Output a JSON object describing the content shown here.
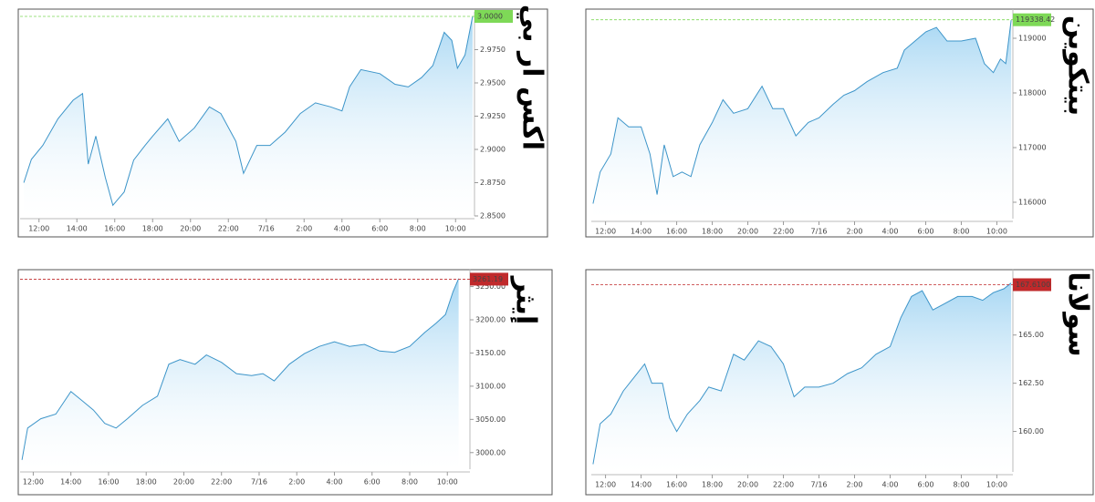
{
  "chart_data": [
    {
      "type": "line",
      "title": "اكس ار بي",
      "color": "#3d95c9",
      "area": true,
      "x": [
        11.2,
        11.6,
        12.2,
        13,
        13.8,
        14.3,
        14.6,
        15,
        15.5,
        15.9,
        16.5,
        17,
        17.6,
        18,
        18.8,
        19.4,
        20.2,
        21,
        21.6,
        22.4,
        22.8,
        23.5,
        24.2,
        25,
        25.8,
        26.6,
        27.4,
        28,
        28.4,
        29,
        30,
        30.8,
        31.5,
        32.2,
        32.8,
        33.4,
        33.8,
        34.1,
        34.5,
        34.9
      ],
      "values": [
        2.875,
        2.8925,
        2.903,
        2.923,
        2.937,
        2.942,
        2.889,
        2.91,
        2.879,
        2.858,
        2.868,
        2.892,
        2.903,
        2.91,
        2.923,
        2.906,
        2.916,
        2.932,
        2.927,
        2.906,
        2.882,
        2.903,
        2.903,
        2.913,
        2.927,
        2.935,
        2.932,
        2.929,
        2.947,
        2.96,
        2.957,
        2.949,
        2.947,
        2.954,
        2.963,
        2.988,
        2.982,
        2.961,
        2.971,
        3.0
      ],
      "xlim": [
        11,
        35
      ],
      "xticks": [
        {
          "value": 12,
          "label": "12:00"
        },
        {
          "value": 14,
          "label": "14:00"
        },
        {
          "value": 16,
          "label": "16:00"
        },
        {
          "value": 18,
          "label": "18:00"
        },
        {
          "value": 20,
          "label": "20:00"
        },
        {
          "value": 22,
          "label": "22:00"
        },
        {
          "value": 24,
          "label": "7/16"
        },
        {
          "value": 26,
          "label": "2:00"
        },
        {
          "value": 28,
          "label": "4:00"
        },
        {
          "value": 30,
          "label": "6:00"
        },
        {
          "value": 32,
          "label": "8:00"
        },
        {
          "value": 34,
          "label": "10:00"
        }
      ],
      "ylim": [
        2.85,
        3.0
      ],
      "yticks": [
        {
          "value": 2.85,
          "label": "2.8500"
        },
        {
          "value": 2.875,
          "label": "2.8750"
        },
        {
          "value": 2.9,
          "label": "2.9000"
        },
        {
          "value": 2.925,
          "label": "2.9250"
        },
        {
          "value": 2.95,
          "label": "2.9500"
        },
        {
          "value": 2.975,
          "label": "2.9750"
        },
        {
          "value": 3.0,
          "label": "3.0000"
        }
      ],
      "price_tag": {
        "value": 3.0,
        "label": "3.0000",
        "color": "#7ed957"
      }
    },
    {
      "type": "line",
      "title": "بيتكوين",
      "color": "#3d95c9",
      "area": true,
      "x": [
        11.3,
        11.7,
        12.3,
        12.7,
        13.3,
        14,
        14.5,
        14.9,
        15.3,
        15.8,
        16.3,
        16.8,
        17.3,
        18,
        18.6,
        19.2,
        20,
        20.8,
        21.4,
        22,
        22.7,
        23.4,
        24,
        24.8,
        25.4,
        26,
        26.7,
        27.6,
        28.4,
        28.8,
        29.4,
        30,
        30.6,
        31.2,
        32,
        32.8,
        33.3,
        33.8,
        34.2,
        34.5,
        34.8
      ],
      "values": [
        115975,
        116554,
        116884,
        117545,
        117380,
        117380,
        116884,
        116140,
        117050,
        116470,
        116554,
        116470,
        117050,
        117460,
        117876,
        117628,
        117711,
        118124,
        117711,
        117711,
        117215,
        117460,
        117545,
        117793,
        117959,
        118041,
        118207,
        118372,
        118454,
        118785,
        118950,
        119116,
        119198,
        118950,
        118950,
        119000,
        118537,
        118372,
        118620,
        118537,
        119330
      ],
      "xlim": [
        11.2,
        34.9
      ],
      "xticks": [
        {
          "value": 12,
          "label": "12:00"
        },
        {
          "value": 14,
          "label": "14:00"
        },
        {
          "value": 16,
          "label": "16:00"
        },
        {
          "value": 18,
          "label": "18:00"
        },
        {
          "value": 20,
          "label": "20:00"
        },
        {
          "value": 22,
          "label": "22:00"
        },
        {
          "value": 24,
          "label": "7/16"
        },
        {
          "value": 26,
          "label": "2:00"
        },
        {
          "value": 28,
          "label": "4:00"
        },
        {
          "value": 30,
          "label": "6:00"
        },
        {
          "value": 32,
          "label": "8:00"
        },
        {
          "value": 34,
          "label": "10:00"
        }
      ],
      "ylim": [
        115700,
        119450
      ],
      "yticks": [
        116000,
        117000,
        118000,
        119000
      ],
      "price_tag": {
        "value": 119338.42,
        "label": "119338.42",
        "color": "#7ed957"
      }
    },
    {
      "type": "line",
      "title": "إيثر",
      "color": "#3d95c9",
      "area": true,
      "x": [
        11.4,
        11.7,
        12.4,
        13.2,
        14,
        14.6,
        15.2,
        15.8,
        16.4,
        17,
        17.8,
        18.6,
        19.2,
        19.8,
        20.6,
        21.2,
        22,
        22.8,
        23.6,
        24.2,
        24.8,
        25.6,
        26.4,
        27.2,
        28,
        28.8,
        29.6,
        30.4,
        31.2,
        32,
        32.8,
        33.4,
        33.9,
        34.3,
        34.6
      ],
      "values": [
        2989,
        3037,
        3051,
        3058,
        3092,
        3078,
        3064,
        3044,
        3037,
        3051,
        3071,
        3085,
        3133,
        3140,
        3133,
        3147,
        3136,
        3119,
        3116,
        3119,
        3108,
        3133,
        3149,
        3160,
        3167,
        3160,
        3163,
        3153,
        3151,
        3160,
        3181,
        3195,
        3208,
        3242,
        3262
      ],
      "xlim": [
        11.3,
        35.2
      ],
      "xticks": [
        {
          "value": 12,
          "label": "12:00"
        },
        {
          "value": 14,
          "label": "14:00"
        },
        {
          "value": 16,
          "label": "16:00"
        },
        {
          "value": 18,
          "label": "18:00"
        },
        {
          "value": 20,
          "label": "20:00"
        },
        {
          "value": 22,
          "label": "22:00"
        },
        {
          "value": 24,
          "label": "7/16"
        },
        {
          "value": 26,
          "label": "2:00"
        },
        {
          "value": 28,
          "label": "4:00"
        },
        {
          "value": 30,
          "label": "6:00"
        },
        {
          "value": 32,
          "label": "8:00"
        },
        {
          "value": 34,
          "label": "10:00"
        }
      ],
      "ylim": [
        2975,
        3270
      ],
      "yticks": [
        {
          "value": 3000,
          "label": "3000.00"
        },
        {
          "value": 3050,
          "label": "3050.00"
        },
        {
          "value": 3100,
          "label": "3100.00"
        },
        {
          "value": 3150,
          "label": "3150.00"
        },
        {
          "value": 3200,
          "label": "3200.00"
        },
        {
          "value": 3250,
          "label": "3250.00"
        }
      ],
      "price_tag": {
        "value": 3261.19,
        "label": "3261.19",
        "color": "#c0292b"
      }
    },
    {
      "type": "line",
      "title": "سولانا",
      "color": "#3d95c9",
      "area": true,
      "x": [
        11.3,
        11.7,
        12.3,
        13,
        13.6,
        14.2,
        14.6,
        15.2,
        15.6,
        16,
        16.6,
        17.3,
        17.8,
        18.5,
        19.2,
        19.8,
        20.6,
        21.3,
        22,
        22.6,
        23.2,
        24,
        24.8,
        25.6,
        26.4,
        27.2,
        28,
        28.6,
        29.2,
        29.8,
        30.4,
        31,
        31.8,
        32.6,
        33.2,
        33.8,
        34.4,
        34.8
      ],
      "values": [
        158.3,
        160.4,
        160.9,
        162.1,
        162.8,
        163.5,
        162.5,
        162.5,
        160.7,
        160.0,
        160.9,
        161.6,
        162.3,
        162.1,
        164.0,
        163.7,
        164.7,
        164.4,
        163.5,
        161.8,
        162.3,
        162.3,
        162.5,
        163.0,
        163.3,
        164.0,
        164.4,
        165.9,
        167.0,
        167.3,
        166.3,
        166.6,
        167.0,
        167.0,
        166.8,
        167.2,
        167.4,
        167.7
      ],
      "xlim": [
        11.2,
        34.9
      ],
      "xticks": [
        {
          "value": 12,
          "label": "12:00"
        },
        {
          "value": 14,
          "label": "14:00"
        },
        {
          "value": 16,
          "label": "16:00"
        },
        {
          "value": 18,
          "label": "18:00"
        },
        {
          "value": 20,
          "label": "20:00"
        },
        {
          "value": 22,
          "label": "22:00"
        },
        {
          "value": 24,
          "label": "7/16"
        },
        {
          "value": 26,
          "label": "2:00"
        },
        {
          "value": 28,
          "label": "4:00"
        },
        {
          "value": 30,
          "label": "6:00"
        },
        {
          "value": 32,
          "label": "8:00"
        },
        {
          "value": 34,
          "label": "10:00"
        }
      ],
      "ylim": [
        157.9,
        168.2
      ],
      "yticks": [
        {
          "value": 160,
          "label": "160.00"
        },
        {
          "value": 162.5,
          "label": "162.50"
        },
        {
          "value": 165,
          "label": "165.00"
        }
      ],
      "price_tag": {
        "value": 167.61,
        "label": "167.6100",
        "color": "#c0292b"
      }
    }
  ]
}
